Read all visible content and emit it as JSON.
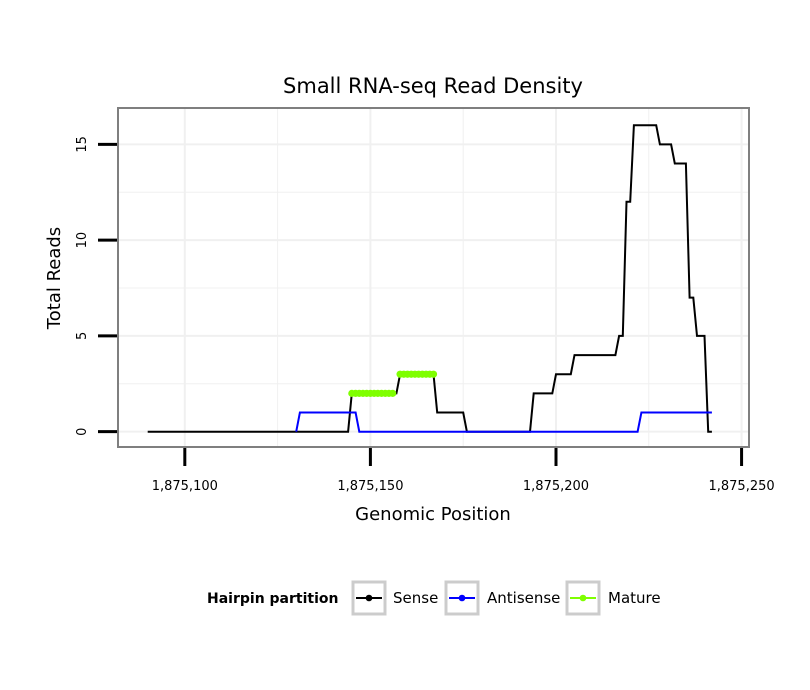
{
  "chart_data": {
    "type": "line",
    "title": "Small RNA-seq Read Density",
    "xlabel": "Genomic Position",
    "ylabel": "Total Reads",
    "xlim": [
      1875082,
      1875252
    ],
    "ylim": [
      -0.8,
      16.9
    ],
    "x_ticks": [
      1875100,
      1875150,
      1875200,
      1875250
    ],
    "x_tick_labels": [
      "1,875,100",
      "1,875,150",
      "1,875,200",
      "1,875,250"
    ],
    "y_ticks": [
      0,
      5,
      10,
      15
    ],
    "y_tick_labels": [
      "0",
      "5",
      "10",
      "15"
    ],
    "grid": true,
    "legend": {
      "title": "Hairpin partition",
      "position": "bottom",
      "entries": [
        "Sense",
        "Antisense",
        "Mature"
      ]
    },
    "series": [
      {
        "name": "Sense",
        "color": "#000000",
        "style": "line",
        "points": [
          [
            1875090,
            0
          ],
          [
            1875144,
            0
          ],
          [
            1875145,
            2
          ],
          [
            1875157,
            2
          ],
          [
            1875158,
            3
          ],
          [
            1875167,
            3
          ],
          [
            1875168,
            1
          ],
          [
            1875175,
            1
          ],
          [
            1875176,
            0
          ],
          [
            1875193,
            0
          ],
          [
            1875194,
            2
          ],
          [
            1875199,
            2
          ],
          [
            1875200,
            3
          ],
          [
            1875204,
            3
          ],
          [
            1875205,
            4
          ],
          [
            1875216,
            4
          ],
          [
            1875217,
            5
          ],
          [
            1875218,
            5
          ],
          [
            1875219,
            12
          ],
          [
            1875220,
            12
          ],
          [
            1875221,
            16
          ],
          [
            1875227,
            16
          ],
          [
            1875228,
            15
          ],
          [
            1875231,
            15
          ],
          [
            1875232,
            14
          ],
          [
            1875235,
            14
          ],
          [
            1875236,
            7
          ],
          [
            1875237,
            7
          ],
          [
            1875238,
            5
          ],
          [
            1875240,
            5
          ],
          [
            1875241,
            0
          ],
          [
            1875242,
            0
          ]
        ]
      },
      {
        "name": "Antisense",
        "color": "#0000ff",
        "style": "line",
        "points": [
          [
            1875130,
            0
          ],
          [
            1875131,
            1
          ],
          [
            1875146,
            1
          ],
          [
            1875147,
            0
          ],
          [
            1875222,
            0
          ],
          [
            1875223,
            1
          ],
          [
            1875242,
            1
          ]
        ]
      },
      {
        "name": "Mature",
        "color": "#7fff00",
        "style": "points",
        "points": [
          [
            1875145,
            2
          ],
          [
            1875146,
            2
          ],
          [
            1875147,
            2
          ],
          [
            1875148,
            2
          ],
          [
            1875149,
            2
          ],
          [
            1875150,
            2
          ],
          [
            1875151,
            2
          ],
          [
            1875152,
            2
          ],
          [
            1875153,
            2
          ],
          [
            1875154,
            2
          ],
          [
            1875155,
            2
          ],
          [
            1875156,
            2
          ],
          [
            1875158,
            3
          ],
          [
            1875159,
            3
          ],
          [
            1875160,
            3
          ],
          [
            1875161,
            3
          ],
          [
            1875162,
            3
          ],
          [
            1875163,
            3
          ],
          [
            1875164,
            3
          ],
          [
            1875165,
            3
          ],
          [
            1875166,
            3
          ],
          [
            1875167,
            3
          ]
        ]
      }
    ]
  }
}
